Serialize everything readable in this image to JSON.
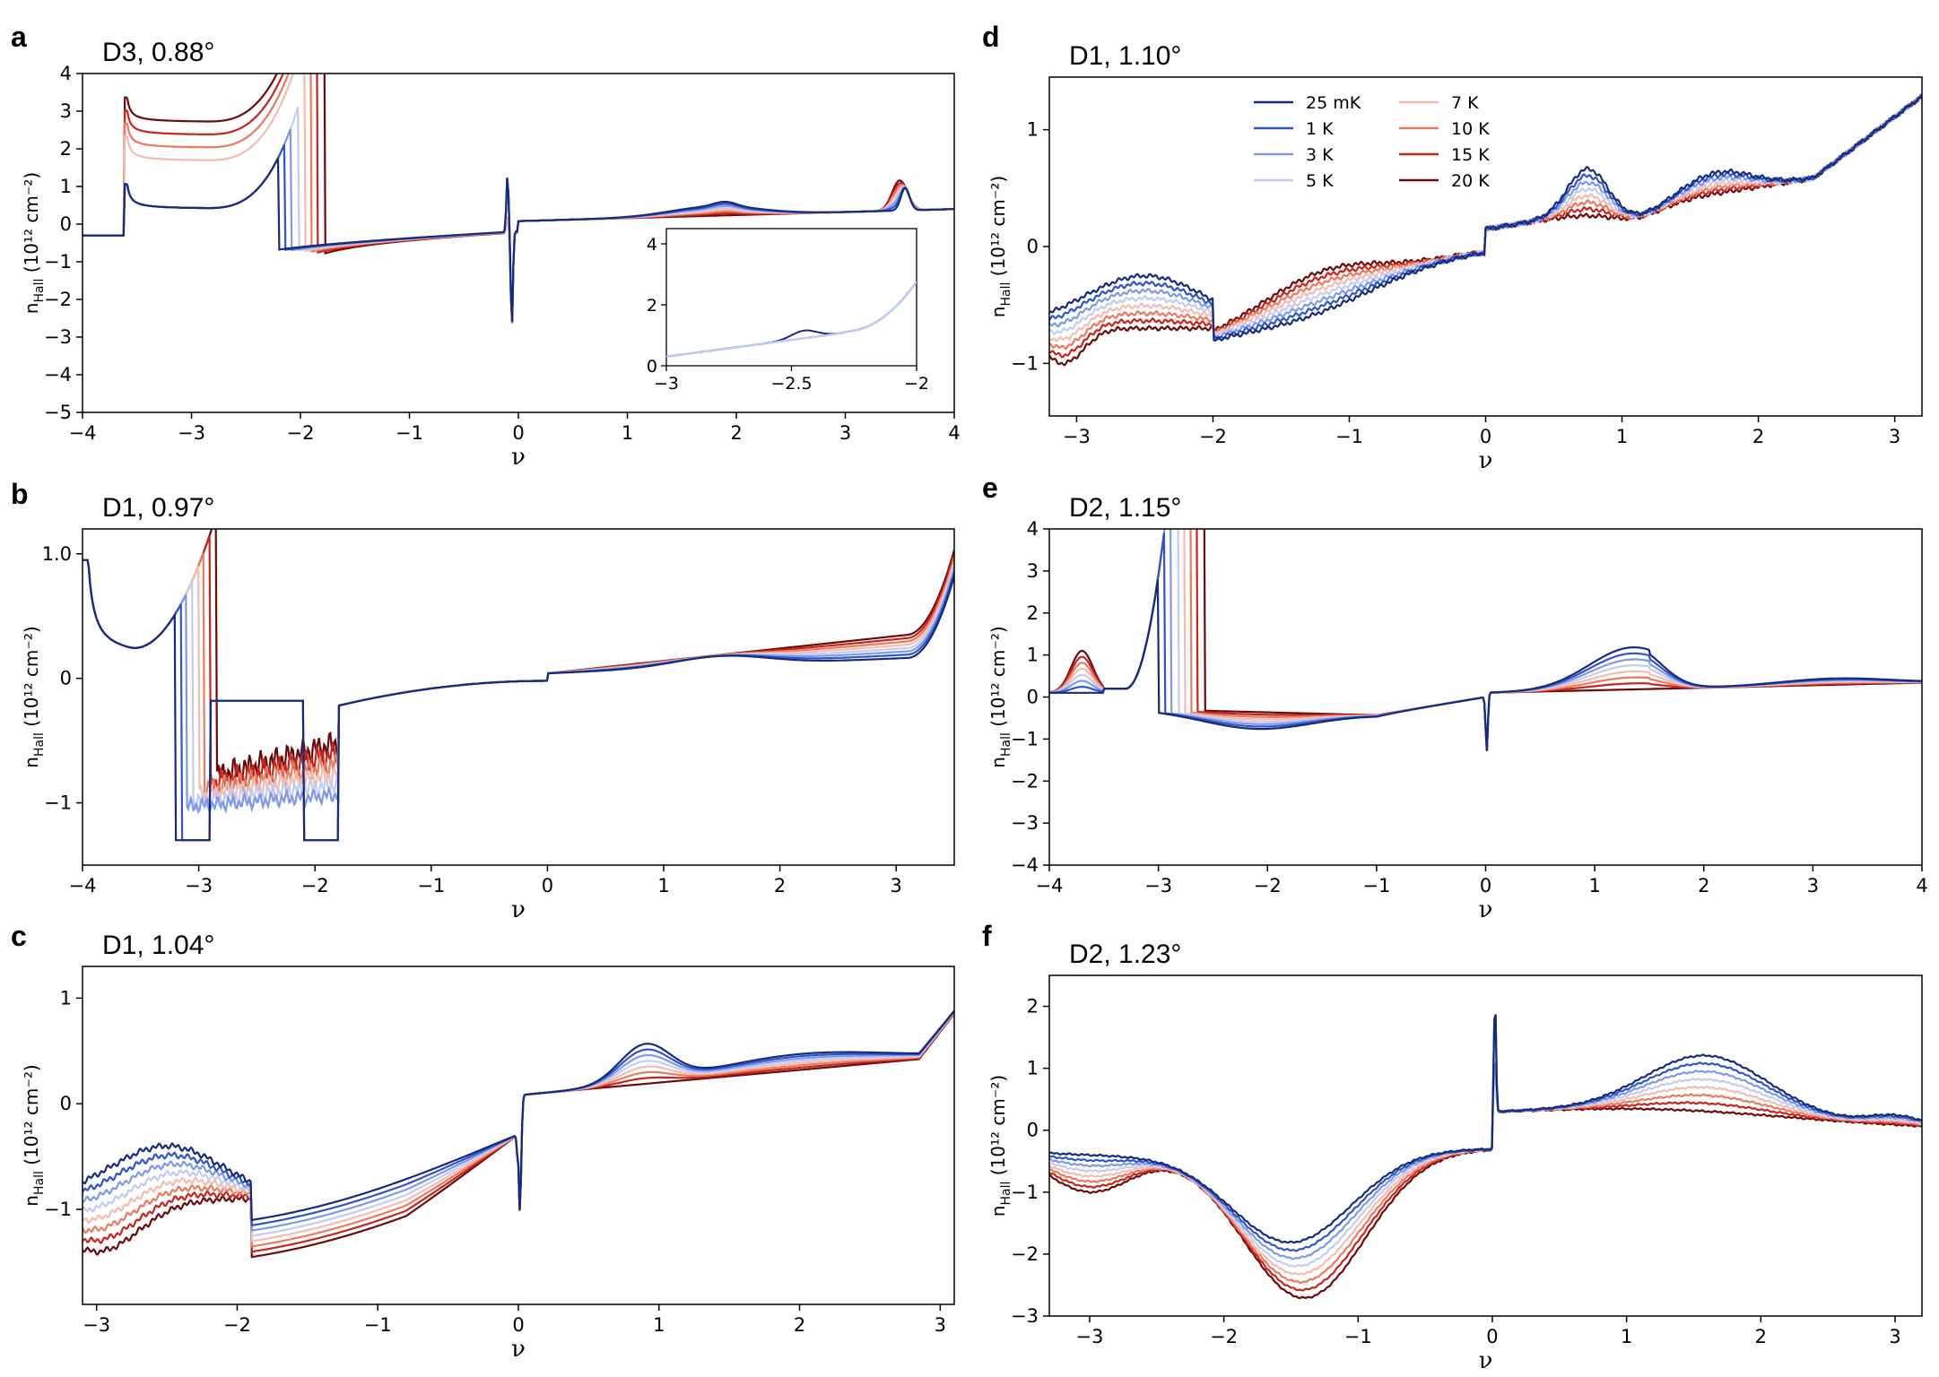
{
  "figure": {
    "temperatures": [
      {
        "label": "25 mK",
        "color": "#172b7a"
      },
      {
        "label": "1 K",
        "color": "#2f55c8"
      },
      {
        "label": "3 K",
        "color": "#7f98e8"
      },
      {
        "label": "5 K",
        "color": "#c3ccf2"
      },
      {
        "label": "7 K",
        "color": "#f4bcb0"
      },
      {
        "label": "10 K",
        "color": "#ea7a5e"
      },
      {
        "label": "15 K",
        "color": "#c8241e"
      },
      {
        "label": "20 K",
        "color": "#6b0a0a"
      }
    ],
    "ylabel_main": "n",
    "ylabel_sub": "Hall",
    "ylabel_units": " (10¹² cm⁻²)",
    "xlabel": "ν"
  },
  "chart_data": [
    {
      "panel": "a",
      "title": "D3, 0.88°",
      "type": "line",
      "xlim": [
        -4,
        4
      ],
      "ylim": [
        -5,
        4
      ],
      "xticks": [
        -4,
        -3,
        -2,
        -1,
        0,
        1,
        2,
        3,
        4
      ],
      "yticks": [
        -5,
        -4,
        -3,
        -2,
        -1,
        0,
        1,
        2,
        3,
        4
      ],
      "xticklabels": [
        "−4",
        "−3",
        "−2",
        "−1",
        "0",
        "1",
        "2",
        "3",
        "4"
      ],
      "yticklabels": [
        "−5",
        "−4",
        "−3",
        "−2",
        "−1",
        "0",
        "1",
        "2",
        "3",
        "4"
      ],
      "xlabel": "ν",
      "ylabel": "n_Hall (10^12 cm^-2)",
      "inset": {
        "xlim": [
          -3,
          -2
        ],
        "ylim": [
          0,
          4.5
        ],
        "xticks": [
          -3,
          -2.5,
          -2
        ],
        "yticks": [
          0,
          2,
          4
        ],
        "xticklabels": [
          "−3",
          "−2.5",
          "−2"
        ],
        "yticklabels": [
          "0",
          "2",
          "4"
        ]
      }
    },
    {
      "panel": "b",
      "title": "D1, 0.97°",
      "type": "line",
      "xlim": [
        -4,
        3.5
      ],
      "ylim": [
        -1.5,
        1.2
      ],
      "xticks": [
        -4,
        -3,
        -2,
        -1,
        0,
        1,
        2,
        3
      ],
      "yticks": [
        -1,
        0,
        1
      ],
      "xticklabels": [
        "−4",
        "−3",
        "−2",
        "−1",
        "0",
        "1",
        "2",
        "3"
      ],
      "yticklabels": [
        "−1",
        "0",
        "1.0"
      ],
      "xlabel": "ν",
      "ylabel": "n_Hall (10^12 cm^-2)"
    },
    {
      "panel": "c",
      "title": "D1, 1.04°",
      "type": "line",
      "xlim": [
        -3.1,
        3.1
      ],
      "ylim": [
        -1.9,
        1.3
      ],
      "xticks": [
        -3,
        -2,
        -1,
        0,
        1,
        2,
        3
      ],
      "yticks": [
        -1,
        0,
        1
      ],
      "xticklabels": [
        "−3",
        "−2",
        "−1",
        "0",
        "1",
        "2",
        "3"
      ],
      "yticklabels": [
        "−1",
        "0",
        "1"
      ],
      "xlabel": "ν",
      "ylabel": "n_Hall (10^12 cm^-2)"
    },
    {
      "panel": "d",
      "title": "D1, 1.10°",
      "type": "line",
      "xlim": [
        -3.2,
        3.2
      ],
      "ylim": [
        -1.45,
        1.45
      ],
      "xticks": [
        -3,
        -2,
        -1,
        0,
        1,
        2,
        3
      ],
      "yticks": [
        -1,
        0,
        1
      ],
      "xticklabels": [
        "−3",
        "−2",
        "−1",
        "0",
        "1",
        "2",
        "3"
      ],
      "yticklabels": [
        "−1",
        "0",
        "1"
      ],
      "xlabel": "ν",
      "ylabel": "n_Hall (10^12 cm^-2)",
      "legend": "top-left"
    },
    {
      "panel": "e",
      "title": "D2, 1.15°",
      "type": "line",
      "xlim": [
        -4,
        4
      ],
      "ylim": [
        -4,
        4
      ],
      "xticks": [
        -4,
        -3,
        -2,
        -1,
        0,
        1,
        2,
        3,
        4
      ],
      "yticks": [
        -4,
        -3,
        -2,
        -1,
        0,
        1,
        2,
        3,
        4
      ],
      "xticklabels": [
        "−4",
        "−3",
        "−2",
        "−1",
        "0",
        "1",
        "2",
        "3",
        "4"
      ],
      "yticklabels": [
        "−4",
        "−3",
        "−2",
        "−1",
        "0",
        "1",
        "2",
        "3",
        "4"
      ],
      "xlabel": "ν",
      "ylabel": "n_Hall (10^12 cm^-2)"
    },
    {
      "panel": "f",
      "title": "D2, 1.23°",
      "type": "line",
      "xlim": [
        -3.3,
        3.2
      ],
      "ylim": [
        -3,
        2.5
      ],
      "xticks": [
        -3,
        -2,
        -1,
        0,
        1,
        2,
        3
      ],
      "yticks": [
        -3,
        -2,
        -1,
        0,
        1,
        2
      ],
      "xticklabels": [
        "−3",
        "−2",
        "−1",
        "0",
        "1",
        "2",
        "3"
      ],
      "yticklabels": [
        "−3",
        "−2",
        "−1",
        "0",
        "1",
        "2"
      ],
      "xlabel": "ν",
      "ylabel": "n_Hall (10^12 cm^-2)"
    }
  ]
}
